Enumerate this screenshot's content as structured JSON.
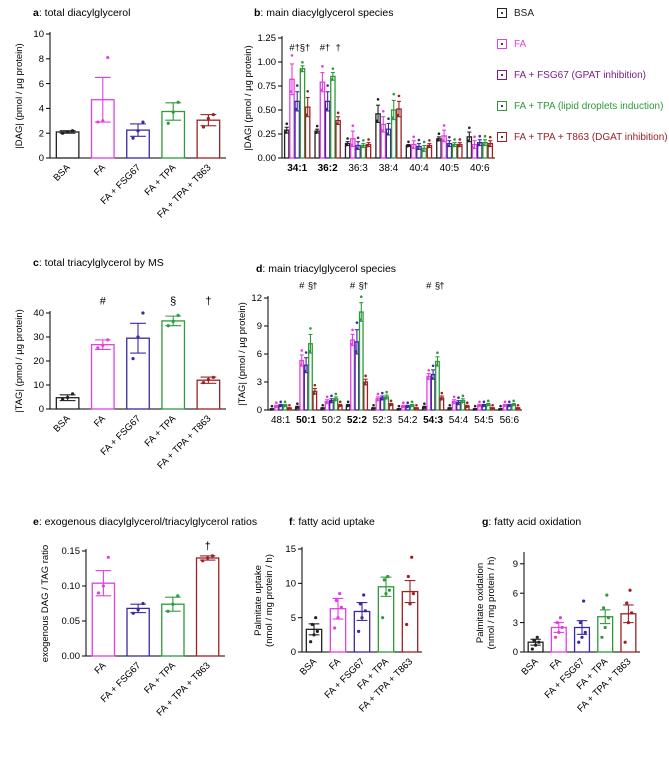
{
  "colors": {
    "BSA": "#222222",
    "FA": "#e43fe0",
    "FA + FSG67": "#3a2aa0",
    "FA + TPA": "#2e9a3a",
    "FA + TPA + T863": "#9b2226",
    "legend_FA + FSG67": "#7a1f8a",
    "legend_FA + TPA": "#2e9a3a",
    "legend_FA + TPA + T863": "#9b2226"
  },
  "legend": [
    {
      "key": "BSA",
      "label": "BSA"
    },
    {
      "key": "FA",
      "label": "FA"
    },
    {
      "key": "FA + FSG67",
      "label": "FA + FSG67 (GPAT inhibition)"
    },
    {
      "key": "FA + TPA",
      "label": "FA + TPA (lipid droplets induction)"
    },
    {
      "key": "FA + TPA + T863",
      "label": "FA + TPA + T863 (DGAT inhibition)"
    }
  ],
  "chart_data": [
    {
      "id": "a",
      "type": "bar",
      "panel_letter": "a",
      "title": ": total diacylglycerol",
      "ylabel": "|DAG| (pmol / µg protein)",
      "ylim": [
        0,
        10
      ],
      "yticks": [
        0,
        2,
        4,
        6,
        8,
        10
      ],
      "ytick_labels": [
        "0",
        "2",
        "4",
        "6",
        "8",
        "10"
      ],
      "categories": [
        "BSA",
        "FA",
        "FA + FSG67",
        "FA + TPA",
        "FA + TPA + T863"
      ],
      "values": [
        2.1,
        4.7,
        2.25,
        3.75,
        3.05
      ],
      "errors": [
        0.1,
        1.8,
        0.5,
        0.7,
        0.45
      ],
      "points": [
        [
          2.0,
          2.1,
          2.2
        ],
        [
          2.9,
          3.0,
          8.1
        ],
        [
          1.6,
          2.2,
          2.9
        ],
        [
          2.8,
          3.7,
          4.5
        ],
        [
          2.5,
          3.2,
          3.5
        ]
      ],
      "annotations": []
    },
    {
      "id": "b",
      "type": "bar",
      "panel_letter": "b",
      "title": ": main diacylglycerol species",
      "ylabel": "|DAG| (pmol / µg protein)",
      "ylim": [
        0,
        1.25
      ],
      "yticks": [
        0,
        0.25,
        0.5,
        0.75,
        1.0,
        1.25
      ],
      "ytick_labels": [
        "0.00",
        "0.25",
        "0.50",
        "0.75",
        "1.00",
        "1.25"
      ],
      "categories": [
        "34:1",
        "36:2",
        "36:3",
        "38:4",
        "40:4",
        "40:5",
        "40:6"
      ],
      "bold_categories": [
        "34:1",
        "36:2"
      ],
      "series_names": [
        "BSA",
        "FA",
        "FA + FSG67",
        "FA + TPA",
        "FA + TPA + T863"
      ],
      "values": [
        [
          0.29,
          0.82,
          0.59,
          0.93,
          0.53
        ],
        [
          0.28,
          0.79,
          0.59,
          0.85,
          0.39
        ],
        [
          0.15,
          0.2,
          0.13,
          0.13,
          0.14
        ],
        [
          0.46,
          0.35,
          0.3,
          0.5,
          0.51
        ],
        [
          0.13,
          0.14,
          0.12,
          0.1,
          0.13
        ],
        [
          0.2,
          0.23,
          0.15,
          0.14,
          0.14
        ],
        [
          0.22,
          0.14,
          0.16,
          0.16,
          0.15
        ]
      ],
      "errors": [
        [
          0.03,
          0.16,
          0.1,
          0.03,
          0.1
        ],
        [
          0.02,
          0.1,
          0.1,
          0.04,
          0.04
        ],
        [
          0.02,
          0.08,
          0.04,
          0.02,
          0.02
        ],
        [
          0.09,
          0.08,
          0.06,
          0.1,
          0.08
        ],
        [
          0.01,
          0.04,
          0.03,
          0.03,
          0.02
        ],
        [
          0.02,
          0.06,
          0.03,
          0.02,
          0.02
        ],
        [
          0.05,
          0.04,
          0.03,
          0.03,
          0.03
        ]
      ],
      "annotations": [
        {
          "cat": 0,
          "series": 1,
          "text": "#",
          "y": 1.12
        },
        {
          "cat": 0,
          "series": 2,
          "text": "†",
          "y": 1.12
        },
        {
          "cat": 0,
          "series": 3,
          "text": "§",
          "y": 1.12
        },
        {
          "cat": 0,
          "series": 4,
          "text": "†",
          "y": 1.12
        },
        {
          "cat": 1,
          "series": 1,
          "text": "#",
          "y": 1.12
        },
        {
          "cat": 1,
          "series": 2,
          "text": "†",
          "y": 1.12
        },
        {
          "cat": 1,
          "series": 4,
          "text": "†",
          "y": 1.12
        }
      ]
    },
    {
      "id": "c",
      "type": "bar",
      "panel_letter": "c",
      "title": ": total triacylglycerol by MS",
      "ylabel": "|TAG| (pmol / µg protein)",
      "ylim": [
        0,
        40
      ],
      "yticks": [
        0,
        10,
        20,
        30,
        40
      ],
      "ytick_labels": [
        "0",
        "10",
        "20",
        "30",
        "40"
      ],
      "categories": [
        "BSA",
        "FA",
        "FA + FSG67",
        "FA + TPA",
        "FA + TPA + T863"
      ],
      "values": [
        4.7,
        26.8,
        29.5,
        36.7,
        12.0
      ],
      "errors": [
        1.2,
        2.0,
        6.2,
        2.0,
        1.3
      ],
      "points": [
        [
          4.0,
          4.8,
          6.3
        ],
        [
          25.5,
          26.5,
          28.8
        ],
        [
          21.0,
          30.0,
          40.0
        ],
        [
          34.7,
          36.5,
          39.0
        ],
        [
          11.0,
          12.3,
          13.2
        ]
      ],
      "annotations": [
        {
          "index": 1,
          "text": "#",
          "y": 43.5
        },
        {
          "index": 3,
          "text": "§",
          "y": 43.5
        },
        {
          "index": 4,
          "text": "†",
          "y": 43.5
        }
      ]
    },
    {
      "id": "d",
      "type": "bar",
      "panel_letter": "d",
      "title": ": main triacylglycerol species",
      "ylabel": "|TAG| (pmol / µg protein)",
      "ylim": [
        0,
        12
      ],
      "yticks": [
        0,
        3,
        6,
        9,
        12
      ],
      "ytick_labels": [
        "0",
        "3",
        "6",
        "9",
        "12"
      ],
      "categories": [
        "48:1",
        "50:1",
        "50:2",
        "52:2",
        "52:3",
        "54:2",
        "54:3",
        "54:4",
        "54:5",
        "56:6"
      ],
      "bold_categories": [
        "50:1",
        "52:2",
        "54:3"
      ],
      "series_names": [
        "BSA",
        "FA",
        "FA + FSG67",
        "FA + TPA",
        "FA + TPA + T863"
      ],
      "values": [
        [
          0.1,
          0.4,
          0.5,
          0.5,
          0.2
        ],
        [
          0.3,
          5.3,
          4.8,
          7.1,
          2.0
        ],
        [
          0.2,
          0.9,
          1.0,
          1.2,
          0.5
        ],
        [
          0.5,
          7.5,
          7.3,
          10.5,
          3.0
        ],
        [
          0.2,
          1.2,
          1.3,
          1.4,
          0.6
        ],
        [
          0.1,
          0.4,
          0.4,
          0.5,
          0.2
        ],
        [
          0.3,
          3.6,
          3.8,
          5.2,
          1.3
        ],
        [
          0.2,
          0.9,
          0.8,
          1.0,
          0.4
        ],
        [
          0.1,
          0.5,
          0.5,
          0.6,
          0.2
        ],
        [
          0.1,
          0.5,
          0.5,
          0.6,
          0.2
        ]
      ],
      "errors": [
        [
          0.05,
          0.1,
          0.1,
          0.1,
          0.05
        ],
        [
          0.1,
          0.6,
          0.8,
          1.0,
          0.3
        ],
        [
          0.05,
          0.2,
          0.2,
          0.2,
          0.1
        ],
        [
          0.1,
          0.6,
          1.3,
          1.0,
          0.3
        ],
        [
          0.05,
          0.2,
          0.2,
          0.2,
          0.1
        ],
        [
          0.05,
          0.1,
          0.1,
          0.1,
          0.05
        ],
        [
          0.1,
          0.3,
          0.5,
          0.5,
          0.2
        ],
        [
          0.05,
          0.2,
          0.2,
          0.2,
          0.1
        ],
        [
          0.05,
          0.1,
          0.1,
          0.1,
          0.05
        ],
        [
          0.05,
          0.1,
          0.1,
          0.1,
          0.05
        ]
      ],
      "annotations": [
        {
          "cat": 1,
          "series": 1,
          "text": "#",
          "y": 13.0
        },
        {
          "cat": 1,
          "series": 3,
          "text": "§",
          "y": 13.0
        },
        {
          "cat": 1,
          "series": 4,
          "text": "†",
          "y": 13.0
        },
        {
          "cat": 3,
          "series": 1,
          "text": "#",
          "y": 13.0
        },
        {
          "cat": 3,
          "series": 3,
          "text": "§",
          "y": 13.0
        },
        {
          "cat": 3,
          "series": 4,
          "text": "†",
          "y": 13.0
        },
        {
          "cat": 6,
          "series": 1,
          "text": "#",
          "y": 13.0
        },
        {
          "cat": 6,
          "series": 3,
          "text": "§",
          "y": 13.0
        },
        {
          "cat": 6,
          "series": 4,
          "text": "†",
          "y": 13.0
        }
      ]
    },
    {
      "id": "e",
      "type": "bar",
      "panel_letter": "e",
      "title": ": exogenous diacylglycerol/triacylglycerol ratios",
      "ylabel": "exogenous DAG / TAG ratio",
      "ylim": [
        0,
        0.15
      ],
      "yticks": [
        0,
        0.05,
        0.1,
        0.15
      ],
      "ytick_labels": [
        "0.00",
        "0.05",
        "0.10",
        "0.15"
      ],
      "categories": [
        "FA",
        "FA + FSG67",
        "FA + TPA",
        "FA + TPA + T863"
      ],
      "series_keys": [
        "FA",
        "FA + FSG67",
        "FA + TPA",
        "FA + TPA + T863"
      ],
      "values": [
        0.104,
        0.068,
        0.074,
        0.14
      ],
      "errors": [
        0.018,
        0.006,
        0.01,
        0.003
      ],
      "points": [
        [
          0.09,
          0.1,
          0.141
        ],
        [
          0.061,
          0.066,
          0.075
        ],
        [
          0.064,
          0.074,
          0.086
        ],
        [
          0.136,
          0.14,
          0.143
        ]
      ],
      "annotations": [
        {
          "index": 3,
          "text": "†",
          "y": 0.152
        }
      ]
    },
    {
      "id": "f",
      "type": "bar",
      "panel_letter": "f",
      "title": ": fatty acid uptake",
      "ylabel": "Palmitate uptake (nmol / mg protein / h)",
      "ylim": [
        0,
        15
      ],
      "yticks": [
        0,
        5,
        10,
        15
      ],
      "ytick_labels": [
        "0",
        "5",
        "10",
        "15"
      ],
      "categories": [
        "BSA",
        "FA",
        "FA + FSG67",
        "FA + TPA",
        "FA + TPA + T863"
      ],
      "values": [
        3.3,
        6.3,
        5.9,
        9.5,
        8.8
      ],
      "errors": [
        0.8,
        1.5,
        1.3,
        1.4,
        1.6
      ],
      "points": [
        [
          1.5,
          2.5,
          3.0,
          4.0,
          5.0
        ],
        [
          3.5,
          5.0,
          6.5,
          7.5,
          8.5
        ],
        [
          3.0,
          5.0,
          6.0,
          7.0,
          8.3
        ],
        [
          5.0,
          8.5,
          9.0,
          10.5,
          11.0
        ],
        [
          4.0,
          7.0,
          8.5,
          11.0,
          13.8
        ]
      ],
      "annotations": []
    },
    {
      "id": "g",
      "type": "bar",
      "panel_letter": "g",
      "title": ": fatty acid oxidation",
      "ylabel": "Palmitate oxidation (nmol / mg protein / h)",
      "ylim": [
        0,
        10
      ],
      "yticks": [
        0,
        3,
        6,
        9
      ],
      "ytick_labels": [
        "0",
        "3",
        "6",
        "9"
      ],
      "categories": [
        "BSA",
        "FA",
        "FA + FSG67",
        "FA + TPA",
        "FA + TPA + T863"
      ],
      "values": [
        1.0,
        2.5,
        2.5,
        3.6,
        3.9
      ],
      "errors": [
        0.3,
        0.5,
        0.7,
        0.7,
        0.9
      ],
      "points": [
        [
          0.3,
          0.7,
          1.0,
          1.2,
          1.5
        ],
        [
          1.5,
          2.0,
          2.5,
          3.0,
          3.5
        ],
        [
          1.0,
          1.5,
          2.0,
          3.0,
          5.2
        ],
        [
          1.5,
          2.5,
          3.5,
          4.5,
          5.8
        ],
        [
          1.0,
          3.0,
          4.0,
          5.0,
          6.3
        ]
      ],
      "annotations": []
    }
  ]
}
